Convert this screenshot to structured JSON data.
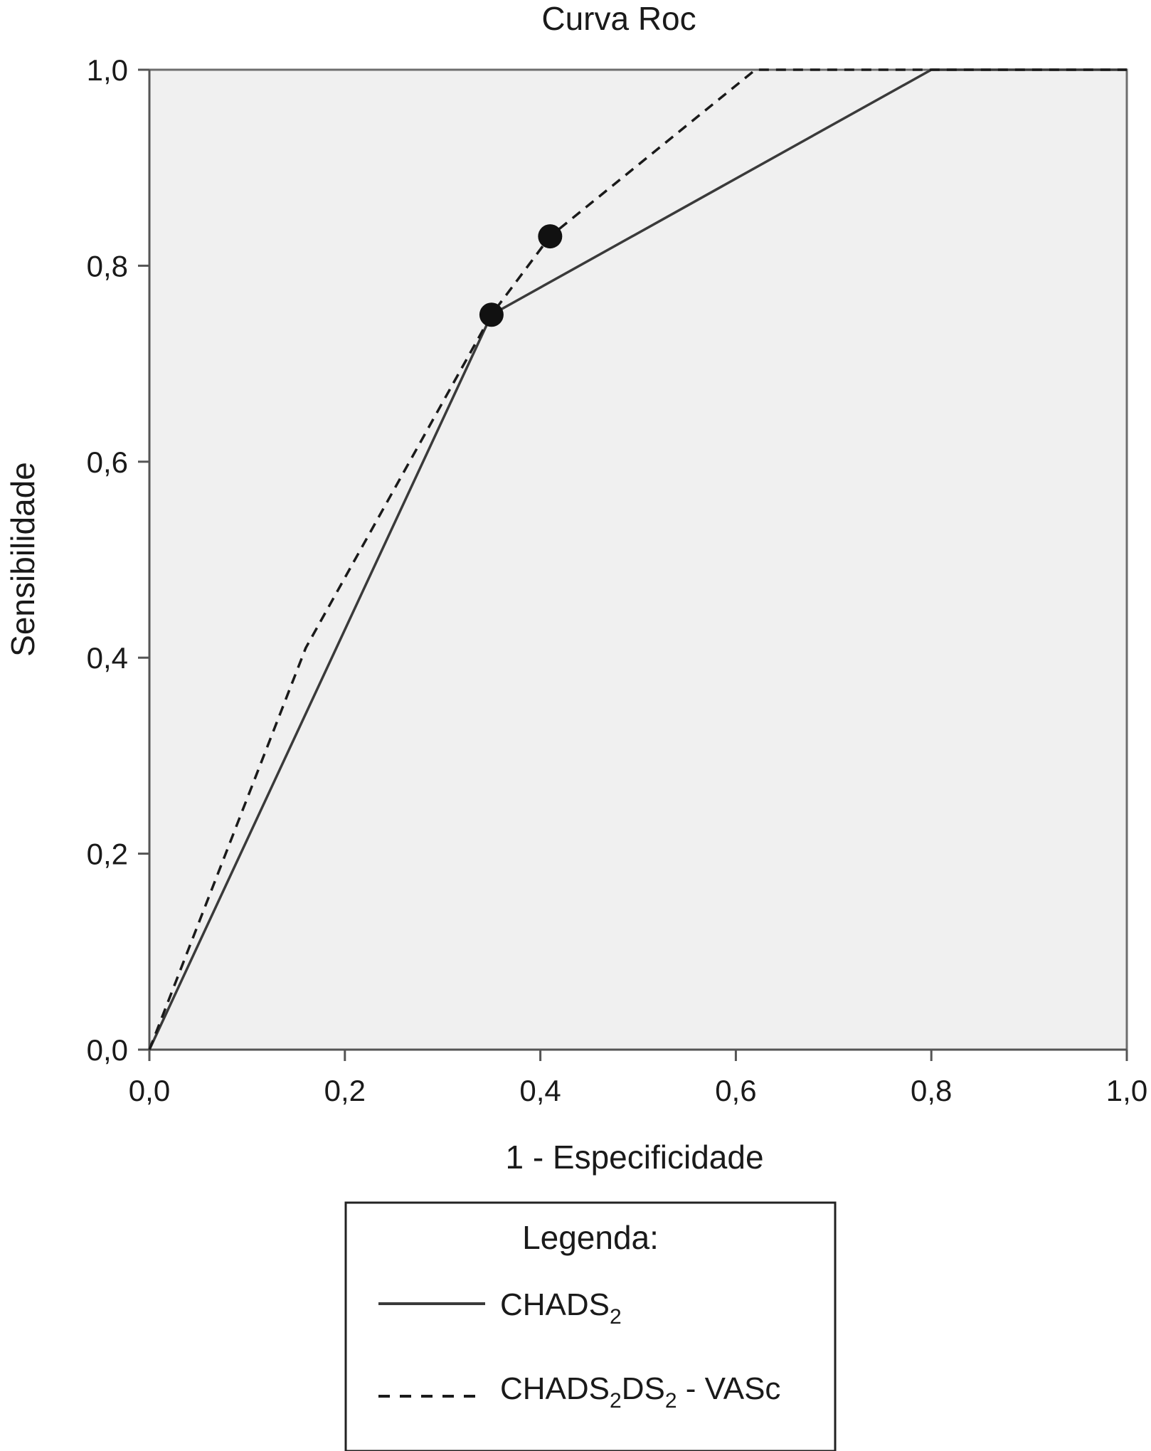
{
  "chart_data": {
    "type": "line",
    "title": "Curva Roc",
    "xlabel": "1 - Especificidade",
    "ylabel": "Sensibilidade",
    "xlim": [
      0,
      1
    ],
    "ylim": [
      0,
      1
    ],
    "x_ticks": [
      {
        "value": 0.0,
        "label": "0,0"
      },
      {
        "value": 0.2,
        "label": "0,2"
      },
      {
        "value": 0.4,
        "label": "0,4"
      },
      {
        "value": 0.6,
        "label": "0,6"
      },
      {
        "value": 0.8,
        "label": "0,8"
      },
      {
        "value": 1.0,
        "label": "1,0"
      }
    ],
    "y_ticks": [
      {
        "value": 0.0,
        "label": "0,0"
      },
      {
        "value": 0.2,
        "label": "0,2"
      },
      {
        "value": 0.4,
        "label": "0,4"
      },
      {
        "value": 0.6,
        "label": "0,6"
      },
      {
        "value": 0.8,
        "label": "0,8"
      },
      {
        "value": 1.0,
        "label": "1,0"
      }
    ],
    "grid": false,
    "plot_background": "#f0f0f0",
    "series": [
      {
        "key": "chads2",
        "name": "CHADS₂",
        "style": "solid",
        "color": "#3a3a3a",
        "points": [
          [
            0.0,
            0.0
          ],
          [
            0.35,
            0.75
          ],
          [
            0.8,
            1.0
          ],
          [
            1.0,
            1.0
          ]
        ]
      },
      {
        "key": "cha2ds2vasc",
        "name": "CHADS₂DS₂ - VASc",
        "style": "dashed",
        "color": "#1a1a1a",
        "points": [
          [
            0.0,
            0.0
          ],
          [
            0.16,
            0.41
          ],
          [
            0.35,
            0.75
          ],
          [
            0.41,
            0.83
          ],
          [
            0.62,
            1.0
          ],
          [
            1.0,
            1.0
          ]
        ]
      }
    ],
    "markers": [
      {
        "x": 0.35,
        "y": 0.75,
        "series": "chads2"
      },
      {
        "x": 0.41,
        "y": 0.83,
        "series": "cha2ds2vasc"
      }
    ],
    "legend": {
      "title": "Legenda:",
      "placement": "bottom-center",
      "entries": [
        {
          "base": "CHADS",
          "sub": "2",
          "rest": "",
          "rest_sub": "",
          "tail": "",
          "style": "solid"
        },
        {
          "base": "CHADS",
          "sub": "2",
          "rest": "DS",
          "rest_sub": "2",
          "tail": " - VASc",
          "style": "dashed"
        }
      ]
    }
  }
}
